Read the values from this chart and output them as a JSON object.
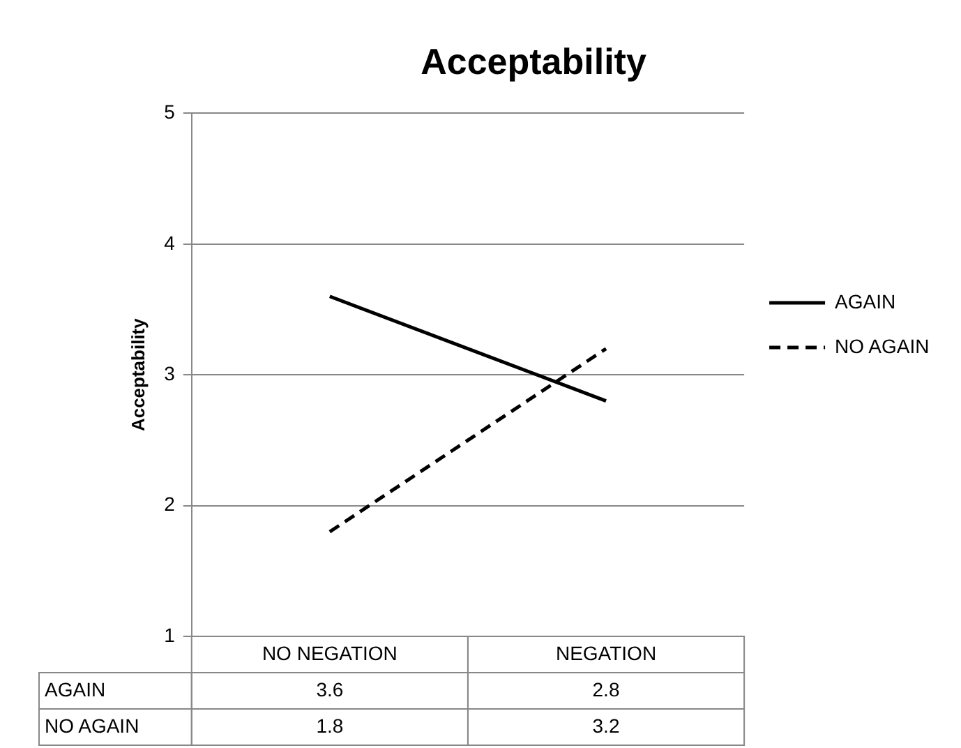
{
  "chart_data": {
    "type": "line",
    "title": "Acceptability",
    "ylabel": "Acceptability",
    "categories": [
      "NO NEGATION",
      "NEGATION"
    ],
    "series": [
      {
        "name": "AGAIN",
        "color": "#000000",
        "values": [
          3.6,
          2.8
        ],
        "line_style": "solid"
      },
      {
        "name": "NO AGAIN",
        "color": "#000000",
        "values": [
          1.8,
          3.2
        ],
        "line_style": "dashed"
      }
    ],
    "ylim": [
      1,
      5
    ],
    "yticks": [
      1,
      2,
      3,
      4,
      5
    ],
    "grid": "y",
    "legend": "right",
    "marker": "none",
    "data_labels": true
  }
}
